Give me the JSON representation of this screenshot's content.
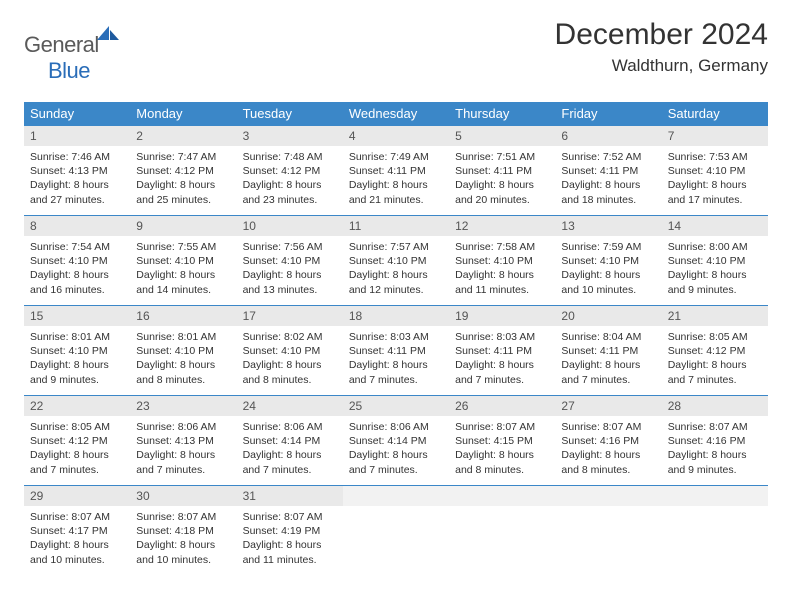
{
  "brand": {
    "word1": "General",
    "word2": "Blue"
  },
  "title": "December 2024",
  "location": "Waldthurn, Germany",
  "colors": {
    "header_bg": "#3b87c8",
    "header_text": "#ffffff",
    "day_bg": "#e9e9e9",
    "border": "#3b87c8",
    "text": "#333333",
    "logo_gray": "#5a5a5a",
    "logo_blue": "#2a6db8"
  },
  "weekdays": [
    "Sunday",
    "Monday",
    "Tuesday",
    "Wednesday",
    "Thursday",
    "Friday",
    "Saturday"
  ],
  "weeks": [
    [
      {
        "n": "1",
        "sr": "Sunrise: 7:46 AM",
        "ss": "Sunset: 4:13 PM",
        "d1": "Daylight: 8 hours",
        "d2": "and 27 minutes."
      },
      {
        "n": "2",
        "sr": "Sunrise: 7:47 AM",
        "ss": "Sunset: 4:12 PM",
        "d1": "Daylight: 8 hours",
        "d2": "and 25 minutes."
      },
      {
        "n": "3",
        "sr": "Sunrise: 7:48 AM",
        "ss": "Sunset: 4:12 PM",
        "d1": "Daylight: 8 hours",
        "d2": "and 23 minutes."
      },
      {
        "n": "4",
        "sr": "Sunrise: 7:49 AM",
        "ss": "Sunset: 4:11 PM",
        "d1": "Daylight: 8 hours",
        "d2": "and 21 minutes."
      },
      {
        "n": "5",
        "sr": "Sunrise: 7:51 AM",
        "ss": "Sunset: 4:11 PM",
        "d1": "Daylight: 8 hours",
        "d2": "and 20 minutes."
      },
      {
        "n": "6",
        "sr": "Sunrise: 7:52 AM",
        "ss": "Sunset: 4:11 PM",
        "d1": "Daylight: 8 hours",
        "d2": "and 18 minutes."
      },
      {
        "n": "7",
        "sr": "Sunrise: 7:53 AM",
        "ss": "Sunset: 4:10 PM",
        "d1": "Daylight: 8 hours",
        "d2": "and 17 minutes."
      }
    ],
    [
      {
        "n": "8",
        "sr": "Sunrise: 7:54 AM",
        "ss": "Sunset: 4:10 PM",
        "d1": "Daylight: 8 hours",
        "d2": "and 16 minutes."
      },
      {
        "n": "9",
        "sr": "Sunrise: 7:55 AM",
        "ss": "Sunset: 4:10 PM",
        "d1": "Daylight: 8 hours",
        "d2": "and 14 minutes."
      },
      {
        "n": "10",
        "sr": "Sunrise: 7:56 AM",
        "ss": "Sunset: 4:10 PM",
        "d1": "Daylight: 8 hours",
        "d2": "and 13 minutes."
      },
      {
        "n": "11",
        "sr": "Sunrise: 7:57 AM",
        "ss": "Sunset: 4:10 PM",
        "d1": "Daylight: 8 hours",
        "d2": "and 12 minutes."
      },
      {
        "n": "12",
        "sr": "Sunrise: 7:58 AM",
        "ss": "Sunset: 4:10 PM",
        "d1": "Daylight: 8 hours",
        "d2": "and 11 minutes."
      },
      {
        "n": "13",
        "sr": "Sunrise: 7:59 AM",
        "ss": "Sunset: 4:10 PM",
        "d1": "Daylight: 8 hours",
        "d2": "and 10 minutes."
      },
      {
        "n": "14",
        "sr": "Sunrise: 8:00 AM",
        "ss": "Sunset: 4:10 PM",
        "d1": "Daylight: 8 hours",
        "d2": "and 9 minutes."
      }
    ],
    [
      {
        "n": "15",
        "sr": "Sunrise: 8:01 AM",
        "ss": "Sunset: 4:10 PM",
        "d1": "Daylight: 8 hours",
        "d2": "and 9 minutes."
      },
      {
        "n": "16",
        "sr": "Sunrise: 8:01 AM",
        "ss": "Sunset: 4:10 PM",
        "d1": "Daylight: 8 hours",
        "d2": "and 8 minutes."
      },
      {
        "n": "17",
        "sr": "Sunrise: 8:02 AM",
        "ss": "Sunset: 4:10 PM",
        "d1": "Daylight: 8 hours",
        "d2": "and 8 minutes."
      },
      {
        "n": "18",
        "sr": "Sunrise: 8:03 AM",
        "ss": "Sunset: 4:11 PM",
        "d1": "Daylight: 8 hours",
        "d2": "and 7 minutes."
      },
      {
        "n": "19",
        "sr": "Sunrise: 8:03 AM",
        "ss": "Sunset: 4:11 PM",
        "d1": "Daylight: 8 hours",
        "d2": "and 7 minutes."
      },
      {
        "n": "20",
        "sr": "Sunrise: 8:04 AM",
        "ss": "Sunset: 4:11 PM",
        "d1": "Daylight: 8 hours",
        "d2": "and 7 minutes."
      },
      {
        "n": "21",
        "sr": "Sunrise: 8:05 AM",
        "ss": "Sunset: 4:12 PM",
        "d1": "Daylight: 8 hours",
        "d2": "and 7 minutes."
      }
    ],
    [
      {
        "n": "22",
        "sr": "Sunrise: 8:05 AM",
        "ss": "Sunset: 4:12 PM",
        "d1": "Daylight: 8 hours",
        "d2": "and 7 minutes."
      },
      {
        "n": "23",
        "sr": "Sunrise: 8:06 AM",
        "ss": "Sunset: 4:13 PM",
        "d1": "Daylight: 8 hours",
        "d2": "and 7 minutes."
      },
      {
        "n": "24",
        "sr": "Sunrise: 8:06 AM",
        "ss": "Sunset: 4:14 PM",
        "d1": "Daylight: 8 hours",
        "d2": "and 7 minutes."
      },
      {
        "n": "25",
        "sr": "Sunrise: 8:06 AM",
        "ss": "Sunset: 4:14 PM",
        "d1": "Daylight: 8 hours",
        "d2": "and 7 minutes."
      },
      {
        "n": "26",
        "sr": "Sunrise: 8:07 AM",
        "ss": "Sunset: 4:15 PM",
        "d1": "Daylight: 8 hours",
        "d2": "and 8 minutes."
      },
      {
        "n": "27",
        "sr": "Sunrise: 8:07 AM",
        "ss": "Sunset: 4:16 PM",
        "d1": "Daylight: 8 hours",
        "d2": "and 8 minutes."
      },
      {
        "n": "28",
        "sr": "Sunrise: 8:07 AM",
        "ss": "Sunset: 4:16 PM",
        "d1": "Daylight: 8 hours",
        "d2": "and 9 minutes."
      }
    ],
    [
      {
        "n": "29",
        "sr": "Sunrise: 8:07 AM",
        "ss": "Sunset: 4:17 PM",
        "d1": "Daylight: 8 hours",
        "d2": "and 10 minutes."
      },
      {
        "n": "30",
        "sr": "Sunrise: 8:07 AM",
        "ss": "Sunset: 4:18 PM",
        "d1": "Daylight: 8 hours",
        "d2": "and 10 minutes."
      },
      {
        "n": "31",
        "sr": "Sunrise: 8:07 AM",
        "ss": "Sunset: 4:19 PM",
        "d1": "Daylight: 8 hours",
        "d2": "and 11 minutes."
      },
      {
        "empty": true
      },
      {
        "empty": true
      },
      {
        "empty": true
      },
      {
        "empty": true
      }
    ]
  ]
}
